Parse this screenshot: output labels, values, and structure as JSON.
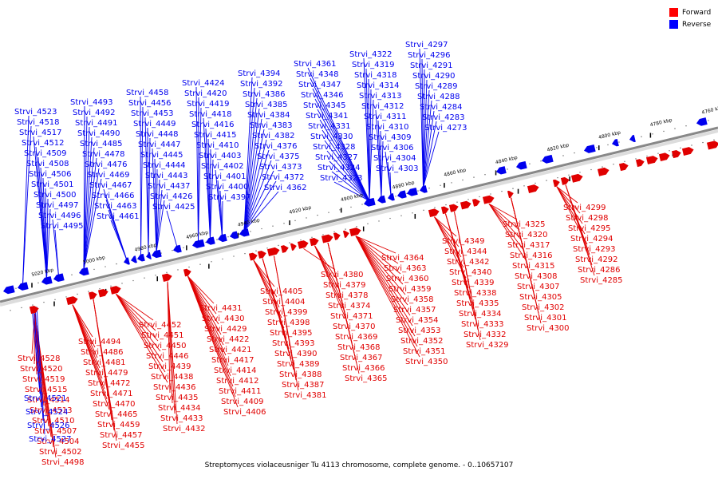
{
  "caption": "Streptomyces violaceusniger Tu 4113 chromosome, complete genome. - 0..10657107",
  "legend": {
    "forward": {
      "label": "Forward",
      "color": "#ff0000"
    },
    "reverse": {
      "label": "Reverse",
      "color": "#0000ff"
    }
  },
  "colors": {
    "forward": "#e00000",
    "reverse": "#0000ee",
    "axis": "#888888"
  },
  "axis_ticks": [
    "5020 kbp",
    "5000 kbp",
    "4980 kbp",
    "4960 kbp",
    "4940 kbp",
    "4920 kbp",
    "4900 kbp",
    "4880 kbp",
    "4860 kbp",
    "4840 kbp",
    "4820 kbp",
    "4800 kbp",
    "4780 kbp",
    "4760 kbp"
  ],
  "reverse_genes": [
    "Strvi_4273",
    "Strvi_4283",
    "Strvi_4284",
    "Strvi_4288",
    "Strvi_4289",
    "Strvi_4290",
    "Strvi_4291",
    "Strvi_4296",
    "Strvi_4297",
    "Strvi_4303",
    "Strvi_4304",
    "Strvi_4306",
    "Strvi_4309",
    "Strvi_4310",
    "Strvi_4311",
    "Strvi_4312",
    "Strvi_4313",
    "Strvi_4314",
    "Strvi_4318",
    "Strvi_4319",
    "Strvi_4322",
    "Strvi_4323",
    "Strvi_4324",
    "Strvi_4327",
    "Strvi_4328",
    "Strvi_4330",
    "Strvi_4331",
    "Strvi_4341",
    "Strvi_4345",
    "Strvi_4346",
    "Strvi_4347",
    "Strvi_4348",
    "Strvi_4361",
    "Strvi_4362",
    "Strvi_4372",
    "Strvi_4373",
    "Strvi_4375",
    "Strvi_4376",
    "Strvi_4382",
    "Strvi_4383",
    "Strvi_4384",
    "Strvi_4385",
    "Strvi_4386",
    "Strvi_4392",
    "Strvi_4394",
    "Strvi_4397",
    "Strvi_4400",
    "Strvi_4401",
    "Strvi_4402",
    "Strvi_4403",
    "Strvi_4410",
    "Strvi_4415",
    "Strvi_4416",
    "Strvi_4418",
    "Strvi_4419",
    "Strvi_4420",
    "Strvi_4424",
    "Strvi_4425",
    "Strvi_4426",
    "Strvi_4437",
    "Strvi_4443",
    "Strvi_4444",
    "Strvi_4445",
    "Strvi_4447",
    "Strvi_4448",
    "Strvi_4449",
    "Strvi_4453",
    "Strvi_4456",
    "Strvi_4458",
    "Strvi_4461",
    "Strvi_4463",
    "Strvi_4466",
    "Strvi_4467",
    "Strvi_4469",
    "Strvi_4476",
    "Strvi_4478",
    "Strvi_4485",
    "Strvi_4490",
    "Strvi_4491",
    "Strvi_4492",
    "Strvi_4493",
    "Strvi_4495",
    "Strvi_4496",
    "Strvi_4497",
    "Strvi_4500",
    "Strvi_4501",
    "Strvi_4506",
    "Strvi_4508",
    "Strvi_4509",
    "Strvi_4512",
    "Strvi_4517",
    "Strvi_4518",
    "Strvi_4523"
  ],
  "forward_genes": [
    "Strvi_4285",
    "Strvi_4286",
    "Strvi_4292",
    "Strvi_4293",
    "Strvi_4294",
    "Strvi_4295",
    "Strvi_4298",
    "Strvi_4299",
    "Strvi_4300",
    "Strvi_4301",
    "Strvi_4302",
    "Strvi_4305",
    "Strvi_4307",
    "Strvi_4308",
    "Strvi_4315",
    "Strvi_4316",
    "Strvi_4317",
    "Strvi_4320",
    "Strvi_4325",
    "Strvi_4329",
    "Strvi_4332",
    "Strvi_4333",
    "Strvi_4334",
    "Strvi_4335",
    "Strvi_4338",
    "Strvi_4339",
    "Strvi_4340",
    "Strvi_4342",
    "Strvi_4344",
    "Strvi_4349",
    "Strvi_4350",
    "Strvi_4351",
    "Strvi_4352",
    "Strvi_4353",
    "Strvi_4354",
    "Strvi_4357",
    "Strvi_4358",
    "Strvi_4359",
    "Strvi_4360",
    "Strvi_4363",
    "Strvi_4364",
    "Strvi_4365",
    "Strvi_4366",
    "Strvi_4367",
    "Strvi_4368",
    "Strvi_4369",
    "Strvi_4370",
    "Strvi_4371",
    "Strvi_4374",
    "Strvi_4378",
    "Strvi_4379",
    "Strvi_4380",
    "Strvi_4381",
    "Strvi_4387",
    "Strvi_4388",
    "Strvi_4389",
    "Strvi_4390",
    "Strvi_4393",
    "Strvi_4395",
    "Strvi_4398",
    "Strvi_4399",
    "Strvi_4404",
    "Strvi_4405",
    "Strvi_4406",
    "Strvi_4409",
    "Strvi_4411",
    "Strvi_4412",
    "Strvi_4414",
    "Strvi_4417",
    "Strvi_4421",
    "Strvi_4422",
    "Strvi_4429",
    "Strvi_4430",
    "Strvi_4431",
    "Strvi_4432",
    "Strvi_4433",
    "Strvi_4434",
    "Strvi_4435",
    "Strvi_4436",
    "Strvi_4438",
    "Strvi_4439",
    "Strvi_4446",
    "Strvi_4450",
    "Strvi_4451",
    "Strvi_4452",
    "Strvi_4455",
    "Strvi_4457",
    "Strvi_4459",
    "Strvi_4465",
    "Strvi_4470",
    "Strvi_4471",
    "Strvi_4472",
    "Strvi_4479",
    "Strvi_4481",
    "Strvi_4486",
    "Strvi_4494",
    "Strvi_4498",
    "Strvi_4502",
    "Strvi_4504",
    "Strvi_4507",
    "Strvi_4510",
    "Strvi_4513",
    "Strvi_4514",
    "Strvi_4515",
    "Strvi_4519",
    "Strvi_4520",
    "Strvi_4528"
  ],
  "reverse_below_genes": [
    "Strvi_4521",
    "Strvi_4524",
    "Strvi_4526",
    "Strvi_4527"
  ]
}
